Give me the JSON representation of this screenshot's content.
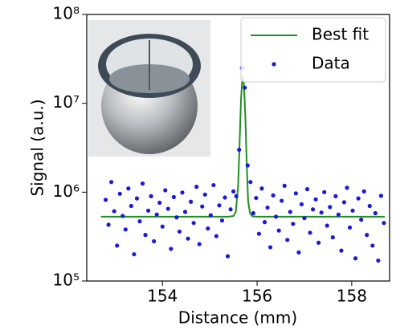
{
  "chart_data": {
    "type": "scatter",
    "xlabel": "Distance (mm)",
    "ylabel": "Signal (a.u.)",
    "xlim": [
      152.4,
      158.8
    ],
    "xticks": [
      154,
      156,
      158
    ],
    "ylim": [
      100000,
      100000000
    ],
    "log_y": true,
    "yticks": [
      {
        "value": 100000,
        "label": "10⁵"
      },
      {
        "value": 1000000,
        "label": "10⁶"
      },
      {
        "value": 10000000,
        "label": "10⁷"
      },
      {
        "value": 100000000,
        "label": "10⁸"
      }
    ],
    "legend": "upper right",
    "series": [
      {
        "name": "Best fit",
        "color": "#1f8f1f",
        "kind": "line",
        "x": [
          152.7,
          155.4,
          155.5,
          155.55,
          155.6,
          155.63,
          155.66,
          155.69,
          155.72,
          155.75,
          155.78,
          155.81,
          155.85,
          155.9,
          156,
          158.7
        ],
        "values": [
          530000,
          530000,
          540000,
          600000,
          1200000,
          3500000,
          11000000,
          20000000,
          17000000,
          7500000,
          2200000,
          800000,
          580000,
          535000,
          530000,
          530000
        ]
      },
      {
        "name": "Data",
        "color": "#1a1ad9",
        "kind": "points",
        "x": [
          152.8,
          152.86,
          152.92,
          152.98,
          153.04,
          153.1,
          153.16,
          153.22,
          153.28,
          153.34,
          153.4,
          153.46,
          153.52,
          153.58,
          153.64,
          153.7,
          153.76,
          153.82,
          153.88,
          153.94,
          154,
          154.06,
          154.12,
          154.18,
          154.24,
          154.3,
          154.36,
          154.42,
          154.48,
          154.54,
          154.6,
          154.66,
          154.72,
          154.78,
          154.84,
          154.9,
          154.96,
          155.02,
          155.08,
          155.14,
          155.2,
          155.26,
          155.32,
          155.38,
          155.44,
          155.5,
          155.56,
          155.62,
          155.68,
          155.74,
          155.8,
          155.86,
          155.92,
          155.98,
          156.04,
          156.1,
          156.16,
          156.22,
          156.28,
          156.34,
          156.4,
          156.46,
          156.52,
          156.58,
          156.64,
          156.7,
          156.76,
          156.82,
          156.88,
          156.94,
          157,
          157.06,
          157.12,
          157.18,
          157.24,
          157.3,
          157.36,
          157.42,
          157.48,
          157.54,
          157.6,
          157.66,
          157.72,
          157.78,
          157.84,
          157.9,
          157.96,
          158.02,
          158.08,
          158.14,
          158.2,
          158.26,
          158.32,
          158.38,
          158.44,
          158.5,
          158.56,
          158.62,
          158.68
        ],
        "values": [
          820000,
          430000,
          1300000,
          610000,
          250000,
          960000,
          540000,
          380000,
          1100000,
          700000,
          200000,
          850000,
          470000,
          1250000,
          330000,
          620000,
          900000,
          280000,
          560000,
          760000,
          410000,
          1050000,
          650000,
          230000,
          880000,
          520000,
          360000,
          990000,
          600000,
          300000,
          780000,
          450000,
          1150000,
          260000,
          690000,
          940000,
          390000,
          550000,
          1200000,
          320000,
          710000,
          480000,
          870000,
          190000,
          640000,
          1020000,
          900000,
          3000000,
          25000000,
          15000000,
          2000000,
          1300000,
          580000,
          860000,
          340000,
          1100000,
          460000,
          670000,
          240000,
          920000,
          530000,
          370000,
          800000,
          1180000,
          290000,
          600000,
          440000,
          970000,
          210000,
          730000,
          510000,
          1080000,
          350000,
          640000,
          830000,
          270000,
          590000,
          1000000,
          420000,
          680000,
          310000,
          900000,
          560000,
          220000,
          770000,
          1120000,
          400000,
          620000,
          180000,
          850000,
          490000,
          1020000,
          330000,
          700000,
          250000,
          580000,
          170000,
          910000,
          450000
        ]
      }
    ]
  }
}
